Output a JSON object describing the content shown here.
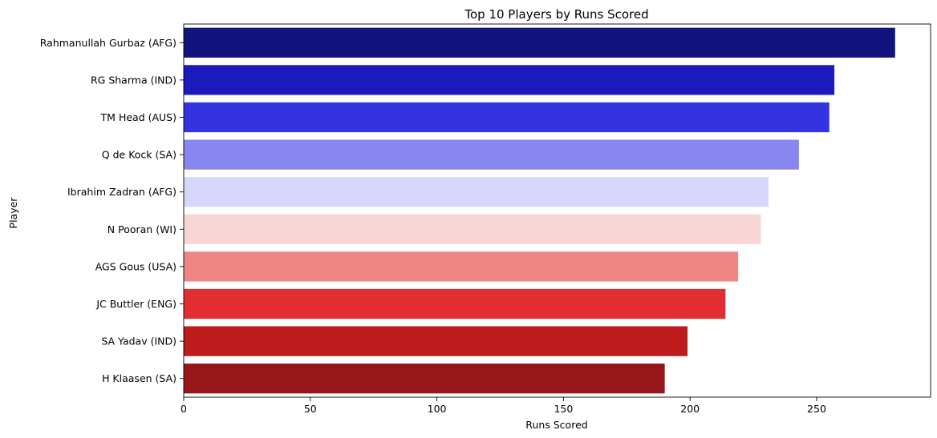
{
  "chart_data": {
    "type": "bar",
    "orientation": "horizontal",
    "title": "Top 10 Players by Runs Scored",
    "xlabel": "Runs Scored",
    "ylabel": "Player",
    "xlim": [
      0,
      295
    ],
    "xticks": [
      0,
      50,
      100,
      150,
      200,
      250
    ],
    "grid": false,
    "legend": "none",
    "categories": [
      "Rahmanullah Gurbaz (AFG)",
      "RG Sharma (IND)",
      "TM Head (AUS)",
      "Q de Kock (SA)",
      "Ibrahim Zadran (AFG)",
      "N Pooran (WI)",
      "AGS Gous (USA)",
      "JC Buttler (ENG)",
      "SA Yadav (IND)",
      "H Klaasen (SA)"
    ],
    "values": [
      281,
      257,
      255,
      243,
      231,
      228,
      219,
      214,
      199,
      190
    ],
    "colors": [
      "#11137f",
      "#1b1bbc",
      "#3333e2",
      "#8887ef",
      "#d7d7fb",
      "#f9d6d6",
      "#ef8585",
      "#e22e30",
      "#be1b1d",
      "#97161a"
    ]
  }
}
